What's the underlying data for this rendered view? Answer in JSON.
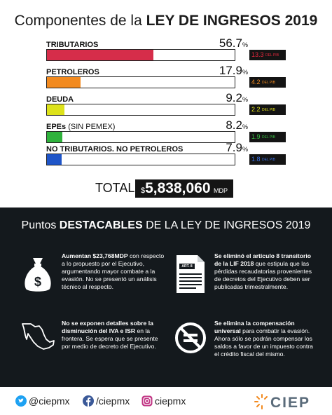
{
  "header": {
    "title_prefix": "Componentes de la ",
    "title_bold": "LEY DE INGRESOS 2019"
  },
  "components": [
    {
      "label": "TRIBUTARIOS",
      "label_extra": "",
      "pct": "56.7",
      "pct_sym": "%",
      "share": 0.567,
      "pib": "13.3",
      "pib_unit": "DEL PIB",
      "bar_color": "#d62d4a",
      "pib_color": "#e8283e"
    },
    {
      "label": "PETROLEROS",
      "label_extra": "",
      "pct": "17.9",
      "pct_sym": "%",
      "share": 0.179,
      "pib": "4.2",
      "pib_unit": "DEL PIB",
      "bar_color": "#f28a1f",
      "pib_color": "#f28a1f"
    },
    {
      "label": "DEUDA",
      "label_extra": "",
      "pct": "9.2",
      "pct_sym": "%",
      "share": 0.092,
      "pib": "2.2",
      "pib_unit": "DEL PIB",
      "bar_color": "#dde21a",
      "pib_color": "#e4e41c"
    },
    {
      "label": "EPEs",
      "label_extra": " (SIN PEMEX)",
      "pct": "8.2",
      "pct_sym": "%",
      "share": 0.082,
      "pib": "1.9",
      "pib_unit": "DEL PIB",
      "bar_color": "#2fb23c",
      "pib_color": "#39c143"
    },
    {
      "label": "NO TRIBUTARIOS. NO PETROLEROS",
      "label_extra": "",
      "pct": "7.9",
      "pct_sym": "%",
      "share": 0.079,
      "pib": "1.8",
      "pib_unit": "DEL PIB",
      "bar_color": "#1f55c8",
      "pib_color": "#3c74e8"
    }
  ],
  "total": {
    "label": "TOTAL",
    "currency": "$",
    "amount": "5,838,060",
    "unit": "MDP"
  },
  "highlights": {
    "title_prefix": "Puntos ",
    "title_bold": "DESTACABLES",
    "title_suffix": " DE LA LEY DE INGRESOS 2019",
    "items": [
      {
        "icon": "money-bag-icon",
        "bold": "Aumentan $23,768MDP",
        "text": " con respecto a lo propuesto por el Ejecutivo, argumentando mayor combate a la evasión. No se presentó un análisis técnico al respecto."
      },
      {
        "icon": "document-icon",
        "icon_label": "ART. 8",
        "bold": "Se eliminó el artículo 8 transitorio de la LIF 2018",
        "text": " que estipula que las pérdidas recaudatorias provenientes de decretos del Ejecutivo deben ser publicadas trimestralmente."
      },
      {
        "icon": "mexico-map-icon",
        "bold": "No se exponen detalles sobre la disminución del IVA e ISR",
        "text": " en la frontera. Se espera que se presente por medio de decreto del Ejecutivo."
      },
      {
        "icon": "no-equals-icon",
        "bold": "Se elimina la compensación universal",
        "text": " para combatir la evasión. Ahora sólo se podrán compensar los saldos a favor de un impuesto contra el crédito fiscal del mismo."
      }
    ]
  },
  "footer": {
    "twitter": "@ciepmx",
    "facebook": "/ciepmx",
    "instagram": "ciepmx",
    "logo": "CIEP"
  }
}
